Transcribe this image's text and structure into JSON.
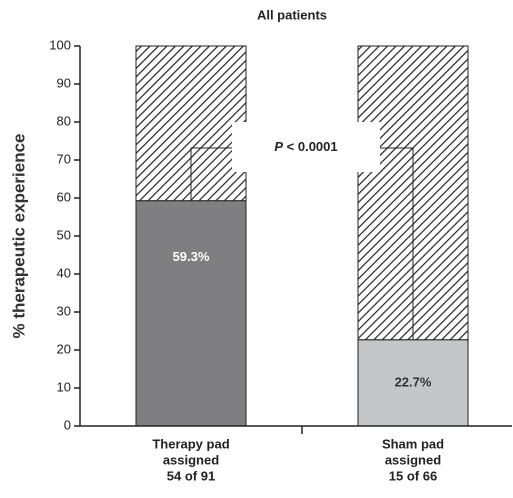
{
  "chart_data": {
    "type": "stacked-bar",
    "title": "All patients",
    "ylabel": "% therapeutic experience",
    "categories": [
      [
        "Therapy pad",
        "assigned",
        "54 of 91"
      ],
      [
        "Sham pad",
        "assigned",
        "15 of 66"
      ]
    ],
    "series": [
      {
        "colors": [
          "#7f7f82",
          "#c5c6c8"
        ],
        "values": [
          59.3,
          22.7
        ],
        "value_labels": [
          "59.3%",
          "22.7%"
        ],
        "label_colors": [
          "#ffffff",
          "#333333"
        ]
      },
      {
        "color": "hatch",
        "values": [
          40.7,
          77.3
        ]
      }
    ],
    "annotation": [
      "P",
      "< 0.0001"
    ],
    "ylim": [
      0,
      100
    ],
    "yticks": [
      0,
      10,
      20,
      30,
      40,
      50,
      60,
      70,
      80,
      90,
      100
    ]
  }
}
